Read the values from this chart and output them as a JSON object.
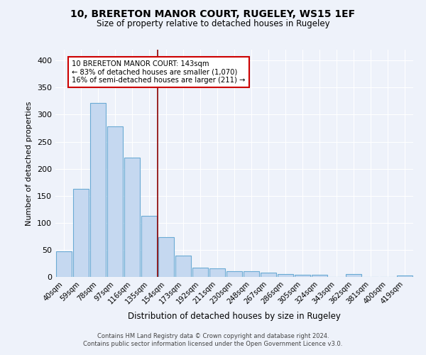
{
  "title1": "10, BRERETON MANOR COURT, RUGELEY, WS15 1EF",
  "title2": "Size of property relative to detached houses in Rugeley",
  "xlabel": "Distribution of detached houses by size in Rugeley",
  "ylabel": "Number of detached properties",
  "categories": [
    "40sqm",
    "59sqm",
    "78sqm",
    "97sqm",
    "116sqm",
    "135sqm",
    "154sqm",
    "173sqm",
    "192sqm",
    "211sqm",
    "230sqm",
    "248sqm",
    "267sqm",
    "286sqm",
    "305sqm",
    "324sqm",
    "343sqm",
    "362sqm",
    "381sqm",
    "400sqm",
    "419sqm"
  ],
  "values": [
    47,
    163,
    322,
    278,
    220,
    113,
    74,
    39,
    17,
    16,
    10,
    10,
    8,
    5,
    4,
    4,
    0,
    5,
    0,
    0,
    3
  ],
  "bar_color": "#c5d8f0",
  "bar_edge_color": "#6aaad4",
  "bg_color": "#eef2fa",
  "grid_color": "#ffffff",
  "red_line_x": 5.5,
  "annotation_text": "10 BRERETON MANOR COURT: 143sqm\n← 83% of detached houses are smaller (1,070)\n16% of semi-detached houses are larger (211) →",
  "annotation_box_color": "#ffffff",
  "annotation_box_edge": "#cc0000",
  "footer1": "Contains HM Land Registry data © Crown copyright and database right 2024.",
  "footer2": "Contains public sector information licensed under the Open Government Licence v3.0.",
  "ylim": [
    0,
    420
  ],
  "yticks": [
    0,
    50,
    100,
    150,
    200,
    250,
    300,
    350,
    400
  ]
}
